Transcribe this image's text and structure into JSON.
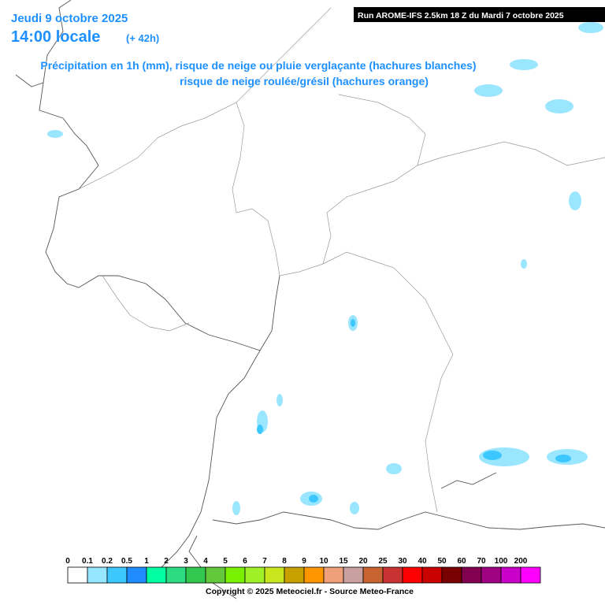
{
  "header": {
    "date": "Jeudi 9 octobre 2025",
    "time": "14:00 locale",
    "lead": "(+ 42h)",
    "run": "Run AROME-IFS 2.5km 18 Z du Mardi 7 octobre 2025"
  },
  "caption": {
    "line1": "Précipitation en 1h (mm), risque de neige ou pluie verglaçante (hachures blanches)",
    "line2": "risque de neige roulée/grésil (hachures orange)"
  },
  "legend": {
    "labels": [
      "0",
      "0.1",
      "0.2",
      "0.5",
      "1",
      "2",
      "3",
      "4",
      "5",
      "6",
      "7",
      "8",
      "9",
      "10",
      "15",
      "20",
      "25",
      "30",
      "40",
      "50",
      "60",
      "70",
      "100",
      "200"
    ],
    "colors": [
      "#ffffff",
      "#96e6ff",
      "#3cc8ff",
      "#1e8cff",
      "#00ffa0",
      "#2ddc82",
      "#32c850",
      "#64c83c",
      "#78f000",
      "#a0f028",
      "#c8e61e",
      "#c8a000",
      "#ff9600",
      "#f0a078",
      "#c8a0a0",
      "#c86432",
      "#c83232",
      "#ff0000",
      "#c80000",
      "#780000",
      "#820050",
      "#a00082",
      "#c800c8",
      "#ff00ff"
    ]
  },
  "footer": {
    "copyright": "Copyright © 2025 Meteociel.fr - Source Meteo-France"
  }
}
